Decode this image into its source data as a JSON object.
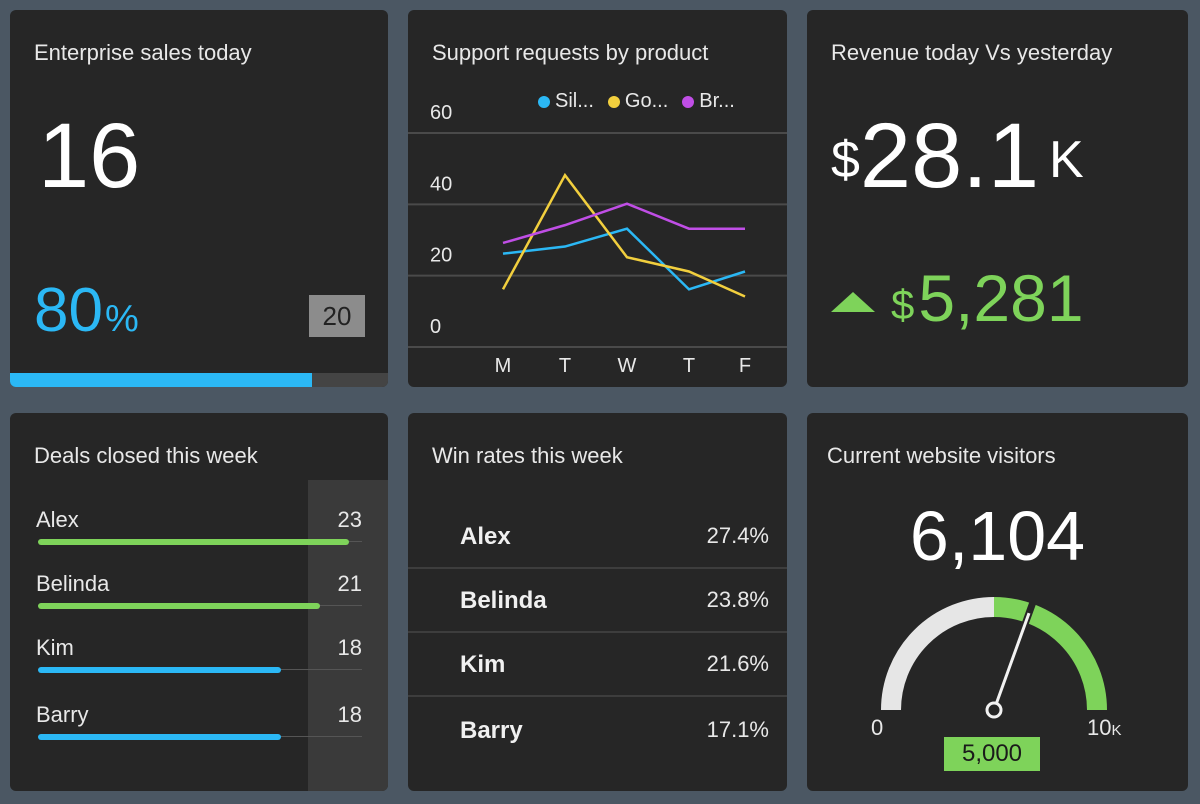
{
  "enterprise_sales": {
    "title": "Enterprise sales today",
    "value": "16",
    "percent": "80",
    "percent_symbol": "%",
    "target": "20",
    "progress": 0.8,
    "accent": "#2bb8f5"
  },
  "support_requests": {
    "title": "Support requests by product",
    "chart_data": {
      "type": "line",
      "title": "Support requests by product",
      "categories": [
        "M",
        "T",
        "W",
        "T",
        "F"
      ],
      "yticks": [
        "60",
        "40",
        "20",
        "0"
      ],
      "ylim": [
        0,
        60
      ],
      "grid": true,
      "legend_position": "top-right",
      "series": [
        {
          "name": "Sil...",
          "color": "#2bb8f5",
          "values": [
            20,
            22,
            27,
            10,
            15
          ]
        },
        {
          "name": "Go...",
          "color": "#f2cf3e",
          "values": [
            10,
            42,
            19,
            15,
            8
          ]
        },
        {
          "name": "Br...",
          "color": "#c04ee6",
          "values": [
            23,
            28,
            34,
            27,
            27
          ]
        }
      ]
    }
  },
  "revenue": {
    "title": "Revenue today Vs yesterday",
    "currency": "$",
    "value": "28.1",
    "suffix": "K",
    "delta_currency": "$",
    "delta": "5,281",
    "delta_color": "#7ed35a"
  },
  "deals": {
    "title": "Deals closed this week",
    "rows": [
      {
        "name": "Alex",
        "value": "23",
        "fraction": 0.96,
        "color": "#7ed35a"
      },
      {
        "name": "Belinda",
        "value": "21",
        "fraction": 0.87,
        "color": "#7ed35a"
      },
      {
        "name": "Kim",
        "value": "18",
        "fraction": 0.75,
        "color": "#2bb8f5"
      },
      {
        "name": "Barry",
        "value": "18",
        "fraction": 0.75,
        "color": "#2bb8f5"
      }
    ]
  },
  "win_rates": {
    "title": "Win rates this week",
    "rows": [
      {
        "name": "Alex",
        "value": "27.4%"
      },
      {
        "name": "Belinda",
        "value": "23.8%"
      },
      {
        "name": "Kim",
        "value": "21.6%"
      },
      {
        "name": "Barry",
        "value": "17.1%"
      }
    ]
  },
  "visitors": {
    "title": "Current website visitors",
    "value": "6,104",
    "min_label": "0",
    "max_label": "10",
    "max_suffix": "K",
    "target": "5,000",
    "gauge_value": 0.6104,
    "gauge_target": 0.5,
    "bar_color": "#7ed35a"
  }
}
